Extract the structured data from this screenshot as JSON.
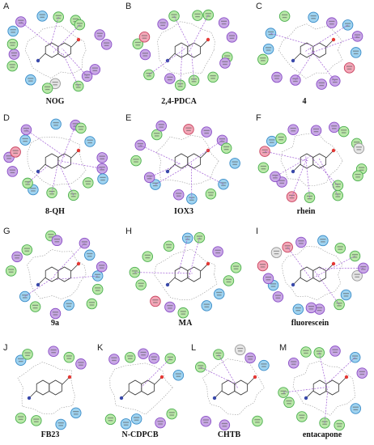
{
  "panels": [
    {
      "letter": "A",
      "caption": "NOG"
    },
    {
      "letter": "B",
      "caption": "2,4-PDCA"
    },
    {
      "letter": "C",
      "caption": "4"
    },
    {
      "letter": "D",
      "caption": "8-QH"
    },
    {
      "letter": "E",
      "caption": "IOX3"
    },
    {
      "letter": "F",
      "caption": "rhein"
    },
    {
      "letter": "G",
      "caption": "9a"
    },
    {
      "letter": "H",
      "caption": "MA"
    },
    {
      "letter": "I",
      "caption": "fluorescein"
    },
    {
      "letter": "J",
      "caption": "FB23"
    },
    {
      "letter": "K",
      "caption": "N-CDPCB"
    },
    {
      "letter": "L",
      "caption": "CHTB"
    },
    {
      "letter": "M",
      "caption": "entacapone"
    }
  ],
  "colors": {
    "polar": "#c9a8e6",
    "polar_stroke": "#8a4fc6",
    "hydrophobic": "#b9e8a8",
    "hydrophobic_stroke": "#4caf50",
    "charged_pos": "#9fd3f0",
    "charged_neg": "#f3a7b8",
    "water": "#e6e6e6",
    "hbond": "#a05cd6",
    "contour": "#9a9a9a"
  }
}
